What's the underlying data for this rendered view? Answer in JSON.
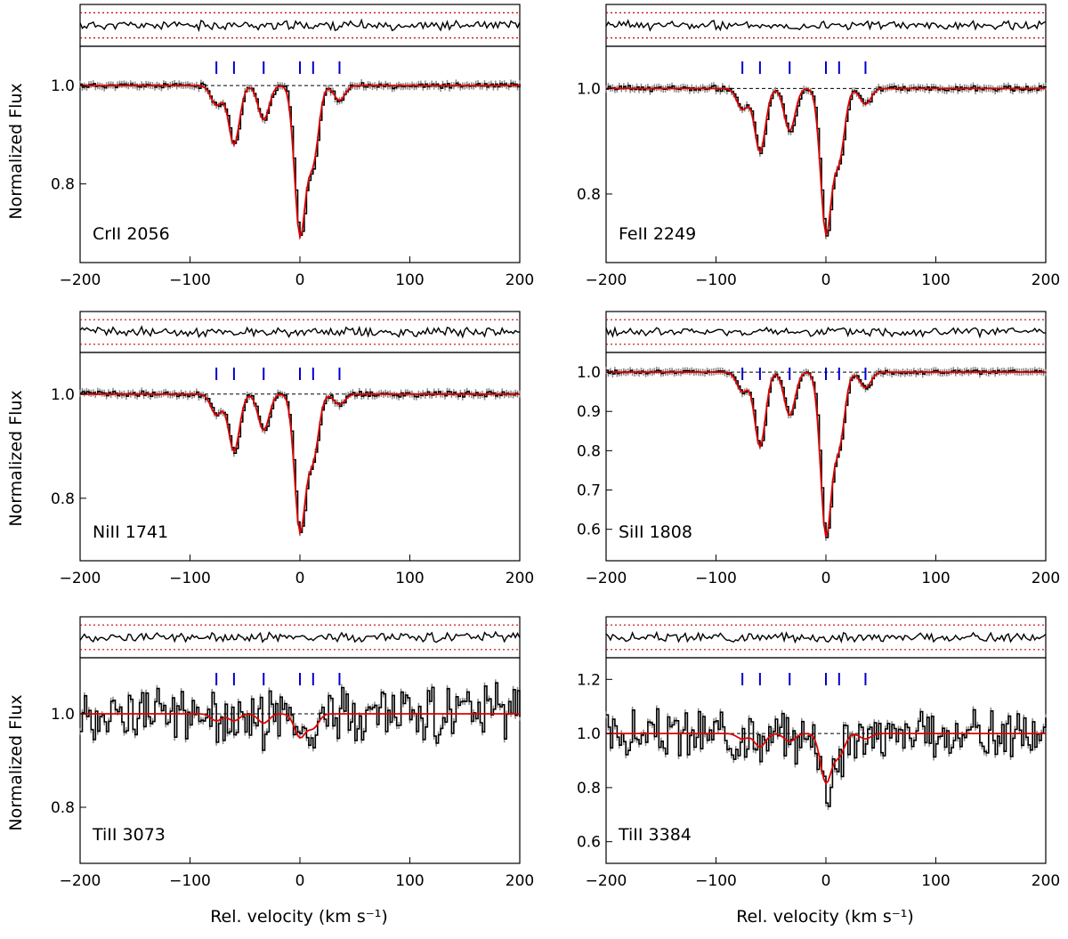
{
  "chart_data": {
    "type": "line",
    "xlabel": "Rel. velocity  (km s⁻¹)",
    "ylabel": "Normalized Flux",
    "xlim": [
      -200,
      200
    ],
    "x_ticks": [
      -200,
      -100,
      0,
      100,
      200
    ],
    "component_velocities": [
      -76,
      -60,
      -33,
      0,
      12,
      36
    ],
    "colors": {
      "data": "#000000",
      "error": "#888888",
      "model": "#e00000",
      "components": "#0000cc",
      "residual_band": "#cc0000",
      "continuum": "#000000"
    },
    "panels": [
      {
        "ion": "CrII 2056",
        "ylim": [
          0.64,
          1.08
        ],
        "yticks": [
          0.8,
          1.0
        ],
        "tick_labels": [
          "0.8",
          "1.0"
        ],
        "components": [
          {
            "v": -60,
            "d": 0.12
          },
          {
            "v": -33,
            "d": 0.07
          },
          {
            "v": 0,
            "d": 0.3
          },
          {
            "v": 12,
            "d": 0.15
          },
          {
            "v": 36,
            "d": 0.03
          },
          {
            "v": -76,
            "d": 0.04
          }
        ],
        "noise": 0.004,
        "seed": 11
      },
      {
        "ion": "FeII 2249",
        "ylim": [
          0.67,
          1.08
        ],
        "yticks": [
          0.8,
          1.0
        ],
        "tick_labels": [
          "0.8",
          "1.0"
        ],
        "components": [
          {
            "v": -60,
            "d": 0.12
          },
          {
            "v": -33,
            "d": 0.08
          },
          {
            "v": 0,
            "d": 0.27
          },
          {
            "v": 12,
            "d": 0.13
          },
          {
            "v": 36,
            "d": 0.03
          },
          {
            "v": -76,
            "d": 0.04
          }
        ],
        "noise": 0.004,
        "seed": 23
      },
      {
        "ion": "NiII 1741",
        "ylim": [
          0.68,
          1.08
        ],
        "yticks": [
          0.8,
          1.0
        ],
        "tick_labels": [
          "0.8",
          "1.0"
        ],
        "components": [
          {
            "v": -60,
            "d": 0.11
          },
          {
            "v": -33,
            "d": 0.07
          },
          {
            "v": 0,
            "d": 0.26
          },
          {
            "v": 12,
            "d": 0.12
          },
          {
            "v": 36,
            "d": 0.02
          },
          {
            "v": -76,
            "d": 0.04
          }
        ],
        "noise": 0.004,
        "seed": 37
      },
      {
        "ion": "SiII 1808",
        "ylim": [
          0.52,
          1.05
        ],
        "yticks": [
          0.6,
          0.7,
          0.8,
          0.9,
          1.0
        ],
        "tick_labels": [
          "0.6",
          "0.7",
          "0.8",
          "0.9",
          "1.0"
        ],
        "components": [
          {
            "v": -60,
            "d": 0.19
          },
          {
            "v": -33,
            "d": 0.11
          },
          {
            "v": 0,
            "d": 0.41
          },
          {
            "v": 12,
            "d": 0.18
          },
          {
            "v": 36,
            "d": 0.04
          },
          {
            "v": -76,
            "d": 0.05
          }
        ],
        "noise": 0.004,
        "seed": 41
      },
      {
        "ion": "TiII 3073",
        "ylim": [
          0.68,
          1.12
        ],
        "yticks": [
          0.8,
          1.0
        ],
        "tick_labels": [
          "0.8",
          "1.0"
        ],
        "components": [
          {
            "v": -60,
            "d": 0.015
          },
          {
            "v": -33,
            "d": 0.02
          },
          {
            "v": 0,
            "d": 0.05
          },
          {
            "v": 12,
            "d": 0.03
          },
          {
            "v": -76,
            "d": 0.015
          }
        ],
        "noise": 0.045,
        "seed": 53,
        "blend_ranges": [
          [
            -200,
            -120
          ],
          [
            120,
            170
          ]
        ]
      },
      {
        "ion": "TiII 3384",
        "ylim": [
          0.52,
          1.28
        ],
        "yticks": [
          0.6,
          0.8,
          1.0,
          1.2
        ],
        "tick_labels": [
          "0.6",
          "0.8",
          "1.0",
          "1.2"
        ],
        "components": [
          {
            "v": -60,
            "d": 0.05
          },
          {
            "v": -33,
            "d": 0.03
          },
          {
            "v": 0,
            "d": 0.18
          },
          {
            "v": 12,
            "d": 0.08
          },
          {
            "v": 36,
            "d": 0.02
          },
          {
            "v": -76,
            "d": 0.02
          }
        ],
        "noise": 0.07,
        "seed": 67
      }
    ]
  }
}
